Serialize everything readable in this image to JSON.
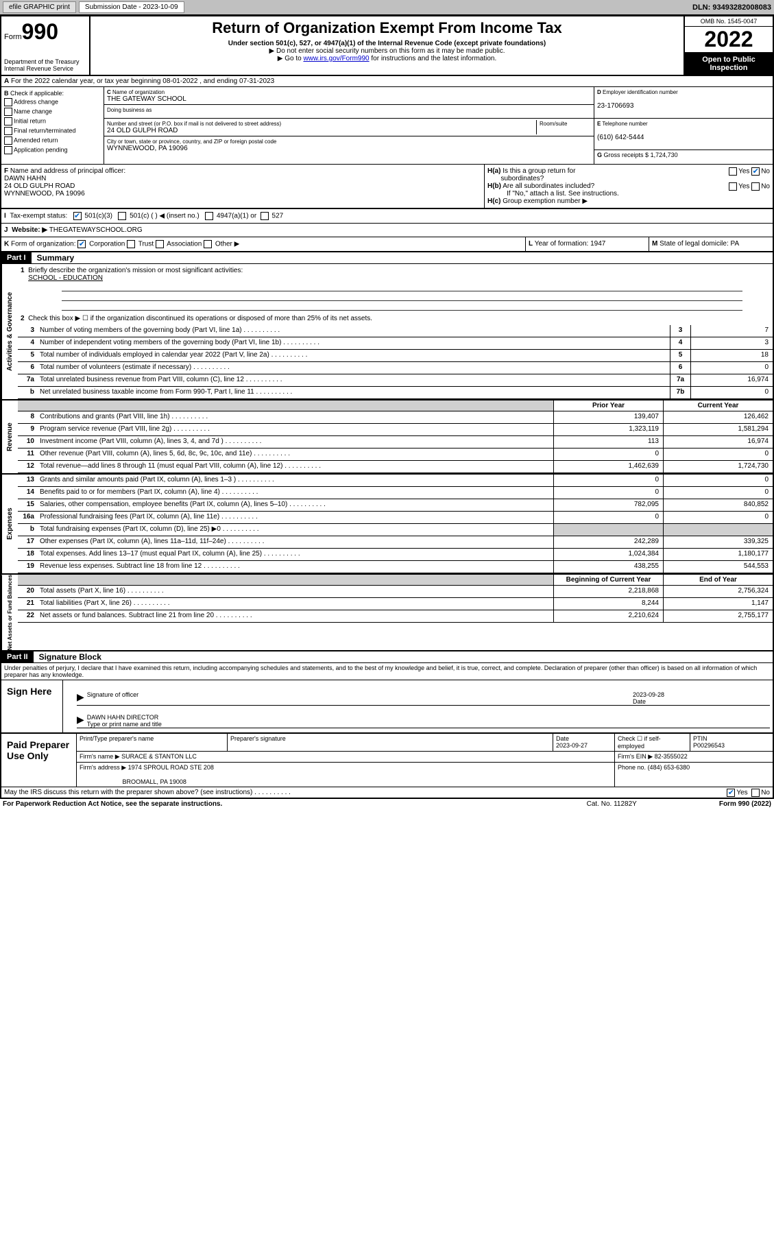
{
  "topbar": {
    "efile": "efile GRAPHIC print",
    "sub_label": "Submission Date - 2023-10-09",
    "dln": "DLN: 93493282008083"
  },
  "header": {
    "form_word": "Form",
    "form_num": "990",
    "dept": "Department of the Treasury",
    "irs": "Internal Revenue Service",
    "title": "Return of Organization Exempt From Income Tax",
    "subtitle": "Under section 501(c), 527, or 4947(a)(1) of the Internal Revenue Code (except private foundations)",
    "instr1": "▶ Do not enter social security numbers on this form as it may be made public.",
    "instr2_pre": "▶ Go to ",
    "instr2_link": "www.irs.gov/Form990",
    "instr2_post": " for instructions and the latest information.",
    "omb": "OMB No. 1545-0047",
    "year": "2022",
    "inspect": "Open to Public Inspection"
  },
  "sectionA": "For the 2022 calendar year, or tax year beginning 08-01-2022   , and ending 07-31-2023",
  "colB": {
    "label": "Check if applicable:",
    "items": [
      "Address change",
      "Name change",
      "Initial return",
      "Final return/terminated",
      "Amended return",
      "Application pending"
    ]
  },
  "colC": {
    "name_label": "Name of organization",
    "name": "THE GATEWAY SCHOOL",
    "dba_label": "Doing business as",
    "dba": "",
    "addr_label": "Number and street (or P.O. box if mail is not delivered to street address)",
    "room_label": "Room/suite",
    "addr": "24 OLD GULPH ROAD",
    "city_label": "City or town, state or province, country, and ZIP or foreign postal code",
    "city": "WYNNEWOOD, PA  19096"
  },
  "colD": {
    "ein_label": "Employer identification number",
    "ein": "23-1706693",
    "phone_label": "Telephone number",
    "phone": "(610) 642-5444",
    "gross_label": "Gross receipts $",
    "gross": "1,724,730"
  },
  "rowF": {
    "label": "Name and address of principal officer:",
    "name": "DAWN HAHN",
    "addr1": "24 OLD GULPH ROAD",
    "addr2": "WYNNEWOOD, PA  19096"
  },
  "rowH": {
    "ha": "Is this a group return for",
    "ha2": "subordinates?",
    "hb": "Are all subordinates included?",
    "hc": "Group exemption number ▶",
    "note": "If \"No,\" attach a list. See instructions."
  },
  "rowI": {
    "label": "Tax-exempt status:",
    "opt1": "501(c)(3)",
    "opt2": "501(c) (  ) ◀ (insert no.)",
    "opt3": "4947(a)(1) or",
    "opt4": "527"
  },
  "rowJ": {
    "label": "Website: ▶",
    "val": "THEGATEWAYSCHOOL.ORG"
  },
  "rowK": {
    "label": "Form of organization:",
    "opts": [
      "Corporation",
      "Trust",
      "Association",
      "Other ▶"
    ]
  },
  "rowL": {
    "label": "Year of formation:",
    "val": "1947"
  },
  "rowM": {
    "label": "State of legal domicile:",
    "val": "PA"
  },
  "part1": {
    "header": "Part I",
    "title": "Summary",
    "line1": "Briefly describe the organization's mission or most significant activities:",
    "line1_val": "SCHOOL - EDUCATION",
    "line2": "Check this box ▶ ☐  if the organization discontinued its operations or disposed of more than 25% of its net assets.",
    "lines_gov": [
      {
        "n": "3",
        "d": "Number of voting members of the governing body (Part VI, line 1a)",
        "box": "3",
        "v": "7"
      },
      {
        "n": "4",
        "d": "Number of independent voting members of the governing body (Part VI, line 1b)",
        "box": "4",
        "v": "3"
      },
      {
        "n": "5",
        "d": "Total number of individuals employed in calendar year 2022 (Part V, line 2a)",
        "box": "5",
        "v": "18"
      },
      {
        "n": "6",
        "d": "Total number of volunteers (estimate if necessary)",
        "box": "6",
        "v": "0"
      },
      {
        "n": "7a",
        "d": "Total unrelated business revenue from Part VIII, column (C), line 12",
        "box": "7a",
        "v": "16,974"
      },
      {
        "n": "b",
        "d": "Net unrelated business taxable income from Form 990-T, Part I, line 11",
        "box": "7b",
        "v": "0"
      }
    ],
    "prior_hdr": "Prior Year",
    "curr_hdr": "Current Year",
    "lines_rev": [
      {
        "n": "8",
        "d": "Contributions and grants (Part VIII, line 1h)",
        "p": "139,407",
        "c": "126,462"
      },
      {
        "n": "9",
        "d": "Program service revenue (Part VIII, line 2g)",
        "p": "1,323,119",
        "c": "1,581,294"
      },
      {
        "n": "10",
        "d": "Investment income (Part VIII, column (A), lines 3, 4, and 7d )",
        "p": "113",
        "c": "16,974"
      },
      {
        "n": "11",
        "d": "Other revenue (Part VIII, column (A), lines 5, 6d, 8c, 9c, 10c, and 11e)",
        "p": "0",
        "c": "0"
      },
      {
        "n": "12",
        "d": "Total revenue—add lines 8 through 11 (must equal Part VIII, column (A), line 12)",
        "p": "1,462,639",
        "c": "1,724,730"
      }
    ],
    "lines_exp": [
      {
        "n": "13",
        "d": "Grants and similar amounts paid (Part IX, column (A), lines 1–3 )",
        "p": "0",
        "c": "0"
      },
      {
        "n": "14",
        "d": "Benefits paid to or for members (Part IX, column (A), line 4)",
        "p": "0",
        "c": "0"
      },
      {
        "n": "15",
        "d": "Salaries, other compensation, employee benefits (Part IX, column (A), lines 5–10)",
        "p": "782,095",
        "c": "840,852"
      },
      {
        "n": "16a",
        "d": "Professional fundraising fees (Part IX, column (A), line 11e)",
        "p": "0",
        "c": "0"
      },
      {
        "n": "b",
        "d": "Total fundraising expenses (Part IX, column (D), line 25) ▶0",
        "p": "",
        "c": "",
        "shade": true
      },
      {
        "n": "17",
        "d": "Other expenses (Part IX, column (A), lines 11a–11d, 11f–24e)",
        "p": "242,289",
        "c": "339,325"
      },
      {
        "n": "18",
        "d": "Total expenses. Add lines 13–17 (must equal Part IX, column (A), line 25)",
        "p": "1,024,384",
        "c": "1,180,177"
      },
      {
        "n": "19",
        "d": "Revenue less expenses. Subtract line 18 from line 12",
        "p": "438,255",
        "c": "544,553"
      }
    ],
    "beg_hdr": "Beginning of Current Year",
    "end_hdr": "End of Year",
    "lines_net": [
      {
        "n": "20",
        "d": "Total assets (Part X, line 16)",
        "p": "2,218,868",
        "c": "2,756,324"
      },
      {
        "n": "21",
        "d": "Total liabilities (Part X, line 26)",
        "p": "8,244",
        "c": "1,147"
      },
      {
        "n": "22",
        "d": "Net assets or fund balances. Subtract line 21 from line 20",
        "p": "2,210,624",
        "c": "2,755,177"
      }
    ],
    "vert_gov": "Activities & Governance",
    "vert_rev": "Revenue",
    "vert_exp": "Expenses",
    "vert_net": "Net Assets or Fund Balances"
  },
  "part2": {
    "header": "Part II",
    "title": "Signature Block",
    "penalties": "Under penalties of perjury, I declare that I have examined this return, including accompanying schedules and statements, and to the best of my knowledge and belief, it is true, correct, and complete. Declaration of preparer (other than officer) is based on all information of which preparer has any knowledge.",
    "sign_here": "Sign Here",
    "sig_officer": "Signature of officer",
    "sig_date": "Date",
    "sig_date_val": "2023-09-28",
    "officer_name": "DAWN HAHN  DIRECTOR",
    "type_name": "Type or print name and title",
    "paid": "Paid Preparer Use Only",
    "prep_name_label": "Print/Type preparer's name",
    "prep_sig_label": "Preparer's signature",
    "prep_date_label": "Date",
    "prep_date": "2023-09-27",
    "self_emp": "Check ☐ if self-employed",
    "ptin_label": "PTIN",
    "ptin": "P00296543",
    "firm_name_label": "Firm's name    ▶",
    "firm_name": "SURACE & STANTON LLC",
    "firm_ein_label": "Firm's EIN ▶",
    "firm_ein": "82-3555022",
    "firm_addr_label": "Firm's address ▶",
    "firm_addr1": "1974 SPROUL ROAD STE 208",
    "firm_addr2": "BROOMALL, PA  19008",
    "firm_phone_label": "Phone no.",
    "firm_phone": "(484) 653-6380",
    "discuss": "May the IRS discuss this return with the preparer shown above? (see instructions)"
  },
  "footer": {
    "l": "For Paperwork Reduction Act Notice, see the separate instructions.",
    "m": "Cat. No. 11282Y",
    "r": "Form 990 (2022)"
  }
}
